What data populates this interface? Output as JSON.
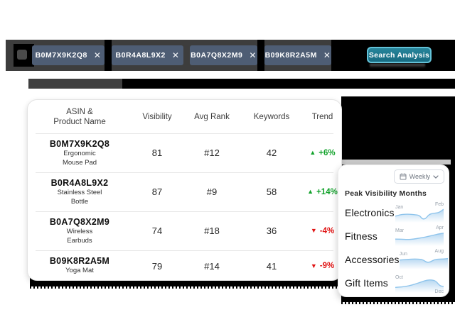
{
  "topbar": {
    "asin_chips": [
      {
        "label": "B0M7X9K2Q8",
        "close_icon": "✕"
      },
      {
        "label": "B0R4A8L9X2",
        "close_icon": "✕"
      },
      {
        "label": "B0A7Q8X2M9",
        "close_icon": "✕"
      },
      {
        "label": "B09K8R2A5M",
        "close_icon": "✕"
      }
    ],
    "search_button_label": "Search Analysis"
  },
  "visibility_table": {
    "columns": {
      "asin_line1": "ASIN &",
      "asin_line2": "Product Name",
      "visibility": "Visibility",
      "avg_rank": "Avg Rank",
      "keywords": "Keywords",
      "trend": "Trend"
    },
    "rows": [
      {
        "asin": "B0M7X9K2Q8",
        "product_line1": "Ergonomic",
        "product_line2": "Mouse Pad",
        "visibility": "81",
        "avg_rank": "#12",
        "keywords": "42",
        "trend_arrow": "▲",
        "trend_value": "+6%",
        "trend_dir": "up"
      },
      {
        "asin": "B0R4A8L9X2",
        "product_line1": "Stainless Steel",
        "product_line2": "Bottle",
        "visibility": "87",
        "avg_rank": "#9",
        "keywords": "58",
        "trend_arrow": "▲",
        "trend_value": "+14%",
        "trend_dir": "up"
      },
      {
        "asin": "B0A7Q8X2M9",
        "product_line1": "Wireless",
        "product_line2": "Earbuds",
        "visibility": "74",
        "avg_rank": "#18",
        "keywords": "36",
        "trend_arrow": "▼",
        "trend_value": "-4%",
        "trend_dir": "down"
      },
      {
        "asin": "B09K8R2A5M",
        "product_line1": "Yoga Mat",
        "product_line2": "",
        "visibility": "79",
        "avg_rank": "#14",
        "keywords": "41",
        "trend_arrow": "▼",
        "trend_value": "-9%",
        "trend_dir": "down"
      }
    ]
  },
  "peak_panel": {
    "period_dropdown": {
      "value": "Weekly"
    },
    "title": "Peak Visibility Months",
    "categories": [
      {
        "label": "Electronics",
        "start_month": "Jan",
        "end_month": "Feb",
        "end_label_pos": "top",
        "spark": [
          [
            0,
            17
          ],
          [
            10,
            14
          ],
          [
            20,
            13
          ],
          [
            30,
            13
          ],
          [
            40,
            14
          ],
          [
            50,
            15
          ],
          [
            56,
            23
          ],
          [
            63,
            22
          ],
          [
            70,
            13
          ],
          [
            80,
            11
          ],
          [
            90,
            10
          ],
          [
            100,
            3
          ]
        ]
      },
      {
        "label": "Fitness",
        "start_month": "Mar",
        "end_month": "Apr",
        "end_label_pos": "top",
        "spark": [
          [
            0,
            16
          ],
          [
            12,
            16
          ],
          [
            25,
            17
          ],
          [
            38,
            16
          ],
          [
            50,
            14
          ],
          [
            62,
            12
          ],
          [
            75,
            9
          ],
          [
            88,
            6
          ],
          [
            100,
            4
          ]
        ]
      },
      {
        "label": "Accessories",
        "start_month": "Jun",
        "end_month": "Aug",
        "end_label_pos": "top",
        "spark": [
          [
            0,
            11
          ],
          [
            12,
            10
          ],
          [
            25,
            9
          ],
          [
            38,
            9
          ],
          [
            48,
            10
          ],
          [
            56,
            16
          ],
          [
            64,
            15
          ],
          [
            72,
            10
          ],
          [
            82,
            9
          ],
          [
            92,
            9
          ],
          [
            100,
            8
          ]
        ]
      },
      {
        "label": "Gift Items",
        "start_month": "Oct",
        "end_month": "Dec",
        "end_label_pos": "bottom",
        "spark": [
          [
            0,
            19
          ],
          [
            14,
            18
          ],
          [
            28,
            16
          ],
          [
            42,
            12
          ],
          [
            54,
            8
          ],
          [
            66,
            4
          ],
          [
            76,
            4
          ],
          [
            84,
            6
          ],
          [
            92,
            16
          ],
          [
            100,
            17
          ]
        ]
      }
    ]
  },
  "colors": {
    "topbar_gray": "#3d3d3d",
    "chip_slate": "#4e5d74",
    "accent_teal": "#1d7e95",
    "positive_green": "#12a22b",
    "negative_red": "#e01414",
    "spark_blue": "#8ec4ec"
  }
}
